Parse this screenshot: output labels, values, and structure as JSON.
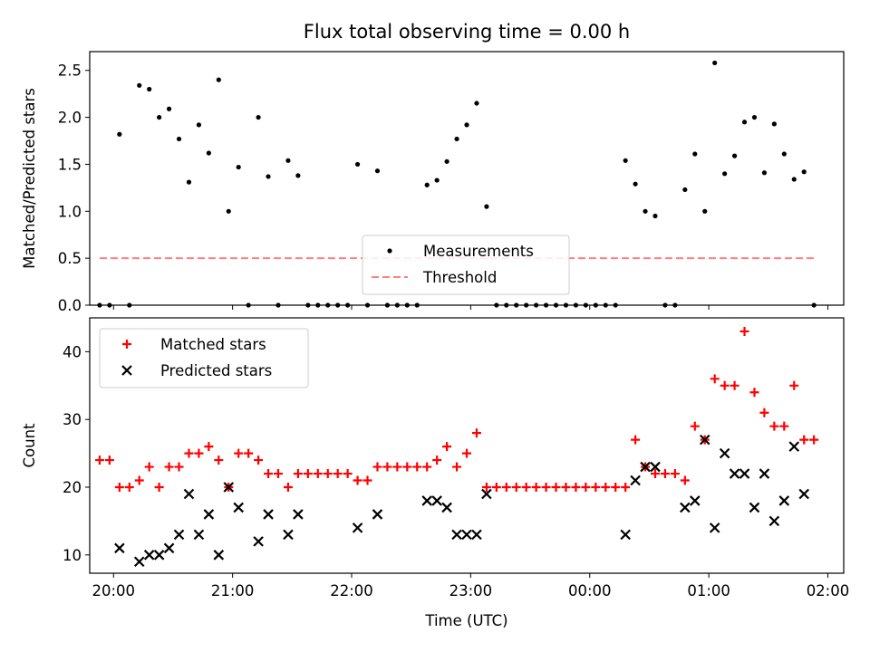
{
  "chart_data": [
    {
      "type": "scatter",
      "title": "Flux total observing time = 0.00 h",
      "xlabel": "",
      "ylabel": "Matched/Predicted stars",
      "ylim": [
        0,
        2.7
      ],
      "xlim": [
        "19:48",
        "02:08"
      ],
      "yticks": [
        0.0,
        0.5,
        1.0,
        1.5,
        2.0,
        2.5
      ],
      "ytick_labels": [
        "0.0",
        "0.5",
        "1.0",
        "1.5",
        "2.0",
        "2.5"
      ],
      "xtick_labels_shown": false,
      "legend": {
        "placement": "lower-center",
        "entries": [
          "Measurements",
          "Threshold"
        ]
      },
      "series": [
        {
          "name": "Measurements",
          "color": "#000000",
          "marker": "dot",
          "points": [
            [
              "19:53",
              0
            ],
            [
              "19:58",
              0
            ],
            [
              "20:03",
              1.82
            ],
            [
              "20:08",
              0
            ],
            [
              "20:13",
              2.34
            ],
            [
              "20:18",
              2.3
            ],
            [
              "20:23",
              2.0
            ],
            [
              "20:28",
              2.09
            ],
            [
              "20:33",
              1.77
            ],
            [
              "20:38",
              1.31
            ],
            [
              "20:43",
              1.92
            ],
            [
              "20:48",
              1.62
            ],
            [
              "20:53",
              2.4
            ],
            [
              "20:58",
              1.0
            ],
            [
              "21:03",
              1.47
            ],
            [
              "21:08",
              0
            ],
            [
              "21:13",
              2.0
            ],
            [
              "21:18",
              1.37
            ],
            [
              "21:23",
              0
            ],
            [
              "21:28",
              1.54
            ],
            [
              "21:33",
              1.38
            ],
            [
              "21:38",
              0
            ],
            [
              "21:43",
              0
            ],
            [
              "21:48",
              0
            ],
            [
              "21:53",
              0
            ],
            [
              "21:58",
              0
            ],
            [
              "22:03",
              1.5
            ],
            [
              "22:08",
              0
            ],
            [
              "22:13",
              1.43
            ],
            [
              "22:18",
              0
            ],
            [
              "22:23",
              0
            ],
            [
              "22:28",
              0
            ],
            [
              "22:33",
              0
            ],
            [
              "22:38",
              1.28
            ],
            [
              "22:43",
              1.33
            ],
            [
              "22:48",
              1.53
            ],
            [
              "22:53",
              1.77
            ],
            [
              "22:58",
              1.92
            ],
            [
              "23:03",
              2.15
            ],
            [
              "23:08",
              1.05
            ],
            [
              "23:13",
              0
            ],
            [
              "23:18",
              0
            ],
            [
              "23:23",
              0
            ],
            [
              "23:28",
              0
            ],
            [
              "23:33",
              0
            ],
            [
              "23:38",
              0
            ],
            [
              "23:43",
              0
            ],
            [
              "23:48",
              0
            ],
            [
              "23:53",
              0
            ],
            [
              "23:58",
              0
            ],
            [
              "00:03",
              0
            ],
            [
              "00:08",
              0
            ],
            [
              "00:13",
              0
            ],
            [
              "00:18",
              1.54
            ],
            [
              "00:23",
              1.29
            ],
            [
              "00:28",
              1.0
            ],
            [
              "00:33",
              0.95
            ],
            [
              "00:38",
              0
            ],
            [
              "00:43",
              0
            ],
            [
              "00:48",
              1.23
            ],
            [
              "00:53",
              1.61
            ],
            [
              "00:58",
              1.0
            ],
            [
              "01:03",
              2.58
            ],
            [
              "01:08",
              1.4
            ],
            [
              "01:13",
              1.59
            ],
            [
              "01:18",
              1.95
            ],
            [
              "01:23",
              2.0
            ],
            [
              "01:28",
              1.41
            ],
            [
              "01:33",
              1.93
            ],
            [
              "01:38",
              1.61
            ],
            [
              "01:43",
              1.34
            ],
            [
              "01:48",
              1.42
            ],
            [
              "01:53",
              0
            ]
          ]
        },
        {
          "name": "Threshold",
          "color": "#ff7f7f",
          "style": "dashed",
          "points": [
            [
              "19:53",
              0.5
            ],
            [
              "01:53",
              0.5
            ]
          ]
        }
      ]
    },
    {
      "type": "scatter",
      "title": "",
      "xlabel": "Time (UTC)",
      "ylabel": "Count",
      "ylim": [
        7.3,
        45
      ],
      "xlim": [
        "19:48",
        "02:08"
      ],
      "yticks": [
        10,
        20,
        30,
        40
      ],
      "ytick_labels": [
        "10",
        "20",
        "30",
        "40"
      ],
      "xticks": [
        "20:00",
        "21:00",
        "22:00",
        "23:00",
        "00:00",
        "01:00",
        "02:00"
      ],
      "xtick_labels": [
        "20:00",
        "21:00",
        "22:00",
        "23:00",
        "00:00",
        "01:00",
        "02:00"
      ],
      "legend": {
        "placement": "top-left",
        "entries": [
          "Matched stars",
          "Predicted stars"
        ]
      },
      "series": [
        {
          "name": "Matched stars",
          "color": "#ff0000",
          "marker": "plus",
          "points": [
            [
              "19:53",
              24
            ],
            [
              "19:58",
              24
            ],
            [
              "20:03",
              20
            ],
            [
              "20:08",
              20
            ],
            [
              "20:13",
              21
            ],
            [
              "20:18",
              23
            ],
            [
              "20:23",
              20
            ],
            [
              "20:28",
              23
            ],
            [
              "20:33",
              23
            ],
            [
              "20:38",
              25
            ],
            [
              "20:43",
              25
            ],
            [
              "20:48",
              26
            ],
            [
              "20:53",
              24
            ],
            [
              "20:58",
              20
            ],
            [
              "21:03",
              25
            ],
            [
              "21:08",
              25
            ],
            [
              "21:13",
              24
            ],
            [
              "21:18",
              22
            ],
            [
              "21:23",
              22
            ],
            [
              "21:28",
              20
            ],
            [
              "21:33",
              22
            ],
            [
              "21:38",
              22
            ],
            [
              "21:43",
              22
            ],
            [
              "21:48",
              22
            ],
            [
              "21:53",
              22
            ],
            [
              "21:58",
              22
            ],
            [
              "22:03",
              21
            ],
            [
              "22:08",
              21
            ],
            [
              "22:13",
              23
            ],
            [
              "22:18",
              23
            ],
            [
              "22:23",
              23
            ],
            [
              "22:28",
              23
            ],
            [
              "22:33",
              23
            ],
            [
              "22:38",
              23
            ],
            [
              "22:43",
              24
            ],
            [
              "22:48",
              26
            ],
            [
              "22:53",
              23
            ],
            [
              "22:58",
              25
            ],
            [
              "23:03",
              28
            ],
            [
              "23:08",
              20
            ],
            [
              "23:13",
              20
            ],
            [
              "23:18",
              20
            ],
            [
              "23:23",
              20
            ],
            [
              "23:28",
              20
            ],
            [
              "23:33",
              20
            ],
            [
              "23:38",
              20
            ],
            [
              "23:43",
              20
            ],
            [
              "23:48",
              20
            ],
            [
              "23:53",
              20
            ],
            [
              "23:58",
              20
            ],
            [
              "00:03",
              20
            ],
            [
              "00:08",
              20
            ],
            [
              "00:13",
              20
            ],
            [
              "00:18",
              20
            ],
            [
              "00:23",
              27
            ],
            [
              "00:28",
              23
            ],
            [
              "00:33",
              22
            ],
            [
              "00:38",
              22
            ],
            [
              "00:43",
              22
            ],
            [
              "00:48",
              21
            ],
            [
              "00:53",
              29
            ],
            [
              "00:58",
              27
            ],
            [
              "01:03",
              36
            ],
            [
              "01:08",
              35
            ],
            [
              "01:13",
              35
            ],
            [
              "01:18",
              43
            ],
            [
              "01:23",
              34
            ],
            [
              "01:28",
              31
            ],
            [
              "01:33",
              29
            ],
            [
              "01:38",
              29
            ],
            [
              "01:43",
              35
            ],
            [
              "01:48",
              27
            ],
            [
              "01:53",
              27
            ]
          ]
        },
        {
          "name": "Predicted stars",
          "color": "#000000",
          "marker": "x",
          "points": [
            [
              "20:03",
              11
            ],
            [
              "20:13",
              9
            ],
            [
              "20:18",
              10
            ],
            [
              "20:23",
              10
            ],
            [
              "20:28",
              11
            ],
            [
              "20:33",
              13
            ],
            [
              "20:38",
              19
            ],
            [
              "20:43",
              13
            ],
            [
              "20:48",
              16
            ],
            [
              "20:53",
              10
            ],
            [
              "20:58",
              20
            ],
            [
              "21:03",
              17
            ],
            [
              "21:13",
              12
            ],
            [
              "21:18",
              16
            ],
            [
              "21:28",
              13
            ],
            [
              "21:33",
              16
            ],
            [
              "22:03",
              14
            ],
            [
              "22:13",
              16
            ],
            [
              "22:38",
              18
            ],
            [
              "22:43",
              18
            ],
            [
              "22:48",
              17
            ],
            [
              "22:53",
              13
            ],
            [
              "22:58",
              13
            ],
            [
              "23:03",
              13
            ],
            [
              "23:08",
              19
            ],
            [
              "00:18",
              13
            ],
            [
              "00:23",
              21
            ],
            [
              "00:28",
              23
            ],
            [
              "00:33",
              23
            ],
            [
              "00:48",
              17
            ],
            [
              "00:53",
              18
            ],
            [
              "00:58",
              27
            ],
            [
              "01:03",
              14
            ],
            [
              "01:08",
              25
            ],
            [
              "01:13",
              22
            ],
            [
              "01:18",
              22
            ],
            [
              "01:23",
              17
            ],
            [
              "01:28",
              22
            ],
            [
              "01:33",
              15
            ],
            [
              "01:38",
              18
            ],
            [
              "01:43",
              26
            ],
            [
              "01:48",
              19
            ]
          ]
        }
      ]
    }
  ]
}
